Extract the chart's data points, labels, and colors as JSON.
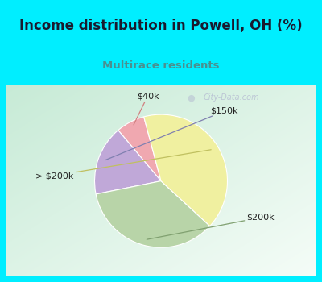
{
  "title": "Income distribution in Powell, OH (%)",
  "subtitle": "Multirace residents",
  "title_color": "#1a1a2e",
  "subtitle_color": "#4a9090",
  "background_top": "#00eeff",
  "labels": [
    "$40k",
    "$150k",
    "$200k",
    "> $200k"
  ],
  "values": [
    7,
    17,
    35,
    41
  ],
  "colors": [
    "#f0a8b0",
    "#c0a8d8",
    "#b8d4a8",
    "#f0f0a0"
  ],
  "startangle": 105,
  "watermark": "City-Data.com"
}
